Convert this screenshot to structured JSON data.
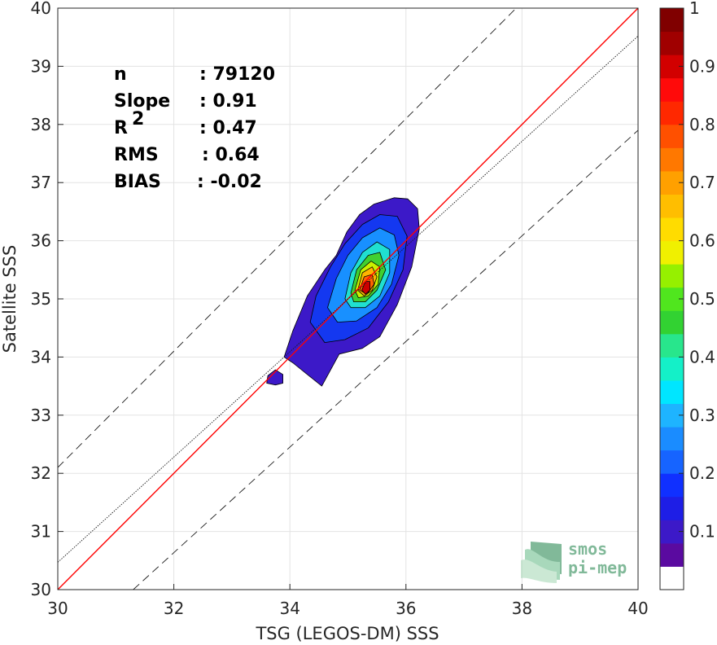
{
  "chart_data": {
    "type": "contour-density",
    "xlabel": "TSG (LEGOS-DM) SSS",
    "ylabel": "Satellite SSS",
    "xlim": [
      30,
      40
    ],
    "ylim": [
      30,
      40
    ],
    "xticks": [
      "30",
      "32",
      "34",
      "36",
      "38",
      "40"
    ],
    "yticks": [
      "30",
      "31",
      "32",
      "33",
      "34",
      "35",
      "36",
      "37",
      "38",
      "39",
      "40"
    ],
    "grid": true,
    "stats": [
      {
        "label": "n",
        "value": ": 79120"
      },
      {
        "label": "Slope",
        "value": ": 0.91"
      },
      {
        "label": "R",
        "sup": "2",
        "value": ": 0.47"
      },
      {
        "label": "RMS",
        "value": ": 0.64"
      },
      {
        "label": "BIAS",
        "value": ": -0.02"
      }
    ],
    "lines": [
      {
        "kind": "identity",
        "color": "#ff0000",
        "x": [
          30,
          40
        ],
        "y": [
          30,
          40
        ]
      },
      {
        "kind": "fit",
        "color": "#1a1a1a",
        "x": [
          30,
          40
        ],
        "y": [
          30.47,
          39.52
        ]
      },
      {
        "kind": "upper-bound",
        "color": "#1a1a1a",
        "x": [
          30,
          40
        ],
        "y": [
          32.1,
          42.1
        ]
      },
      {
        "kind": "lower-bound",
        "color": "#1a1a1a",
        "x": [
          31.3,
          40
        ],
        "y": [
          30,
          37.9
        ]
      }
    ],
    "density_peak": {
      "x": 35.3,
      "y": 35.2
    },
    "contours": [
      {
        "level": 0.1,
        "color": "#3c19c8",
        "points": [
          [
            33.9,
            34.0
          ],
          [
            34.05,
            34.45
          ],
          [
            34.3,
            35.05
          ],
          [
            34.6,
            35.5
          ],
          [
            34.8,
            35.75
          ],
          [
            34.98,
            36.15
          ],
          [
            35.2,
            36.45
          ],
          [
            35.45,
            36.63
          ],
          [
            35.8,
            36.74
          ],
          [
            36.03,
            36.72
          ],
          [
            36.2,
            36.55
          ],
          [
            36.23,
            36.2
          ],
          [
            36.1,
            35.55
          ],
          [
            35.85,
            34.9
          ],
          [
            35.55,
            34.35
          ],
          [
            35.25,
            34.15
          ],
          [
            34.85,
            34.05
          ],
          [
            34.55,
            33.5
          ],
          [
            34.3,
            33.7
          ],
          [
            34.05,
            33.9
          ],
          [
            33.9,
            34.0
          ]
        ]
      },
      {
        "level": 0.2,
        "color": "#1438f0",
        "points": [
          [
            34.35,
            34.6
          ],
          [
            34.45,
            35.05
          ],
          [
            34.7,
            35.55
          ],
          [
            34.95,
            35.95
          ],
          [
            35.25,
            36.28
          ],
          [
            35.55,
            36.45
          ],
          [
            35.85,
            36.42
          ],
          [
            36.02,
            36.08
          ],
          [
            35.95,
            35.5
          ],
          [
            35.7,
            34.95
          ],
          [
            35.35,
            34.5
          ],
          [
            34.95,
            34.3
          ],
          [
            34.6,
            34.25
          ],
          [
            34.35,
            34.6
          ]
        ]
      },
      {
        "level": 0.3,
        "color": "#1890ff",
        "points": [
          [
            34.65,
            34.85
          ],
          [
            34.8,
            35.35
          ],
          [
            35.0,
            35.75
          ],
          [
            35.25,
            36.05
          ],
          [
            35.55,
            36.22
          ],
          [
            35.8,
            36.1
          ],
          [
            35.88,
            35.75
          ],
          [
            35.75,
            35.25
          ],
          [
            35.5,
            34.85
          ],
          [
            35.15,
            34.62
          ],
          [
            34.82,
            34.6
          ],
          [
            34.65,
            34.85
          ]
        ]
      },
      {
        "level": 0.4,
        "color": "#20e0d0",
        "points": [
          [
            34.95,
            35.0
          ],
          [
            35.05,
            35.45
          ],
          [
            35.25,
            35.8
          ],
          [
            35.5,
            35.98
          ],
          [
            35.72,
            35.85
          ],
          [
            35.72,
            35.45
          ],
          [
            35.55,
            35.05
          ],
          [
            35.3,
            34.85
          ],
          [
            35.05,
            34.85
          ],
          [
            34.95,
            35.0
          ]
        ]
      },
      {
        "level": 0.5,
        "color": "#40d030",
        "points": [
          [
            35.05,
            35.1
          ],
          [
            35.15,
            35.5
          ],
          [
            35.35,
            35.75
          ],
          [
            35.55,
            35.8
          ],
          [
            35.65,
            35.5
          ],
          [
            35.5,
            35.15
          ],
          [
            35.3,
            34.95
          ],
          [
            35.1,
            34.95
          ],
          [
            35.05,
            35.1
          ]
        ]
      },
      {
        "level": 0.6,
        "color": "#c8f000",
        "points": [
          [
            35.12,
            35.15
          ],
          [
            35.22,
            35.5
          ],
          [
            35.4,
            35.65
          ],
          [
            35.55,
            35.55
          ],
          [
            35.52,
            35.25
          ],
          [
            35.35,
            35.05
          ],
          [
            35.18,
            35.02
          ],
          [
            35.12,
            35.15
          ]
        ]
      },
      {
        "level": 0.7,
        "color": "#ffb400",
        "points": [
          [
            35.17,
            35.15
          ],
          [
            35.25,
            35.45
          ],
          [
            35.42,
            35.55
          ],
          [
            35.5,
            35.38
          ],
          [
            35.42,
            35.15
          ],
          [
            35.28,
            35.05
          ],
          [
            35.17,
            35.15
          ]
        ]
      },
      {
        "level": 0.8,
        "color": "#ff6400",
        "points": [
          [
            35.2,
            35.15
          ],
          [
            35.28,
            35.38
          ],
          [
            35.42,
            35.42
          ],
          [
            35.45,
            35.25
          ],
          [
            35.33,
            35.08
          ],
          [
            35.2,
            35.15
          ]
        ]
      },
      {
        "level": 0.9,
        "color": "#cc0000",
        "points": [
          [
            35.24,
            35.15
          ],
          [
            35.3,
            35.3
          ],
          [
            35.38,
            35.3
          ],
          [
            35.38,
            35.15
          ],
          [
            35.3,
            35.08
          ],
          [
            35.24,
            35.15
          ]
        ]
      },
      {
        "level": 0.1,
        "color": "#3c19c8",
        "points": [
          [
            33.6,
            33.55
          ],
          [
            33.62,
            33.68
          ],
          [
            33.75,
            33.78
          ],
          [
            33.88,
            33.7
          ],
          [
            33.88,
            33.55
          ],
          [
            33.75,
            33.52
          ],
          [
            33.6,
            33.55
          ]
        ]
      }
    ],
    "colorbar": {
      "colors": [
        "#ffffff",
        "#5a0aa0",
        "#3c19c8",
        "#1e1ee6",
        "#1030ff",
        "#1664ff",
        "#1a8cff",
        "#1eb4ff",
        "#00e6ff",
        "#14f0c8",
        "#28e68c",
        "#32d232",
        "#50e61e",
        "#96f000",
        "#f0f000",
        "#ffdc00",
        "#ffbe00",
        "#ffa000",
        "#ff7800",
        "#ff5000",
        "#ff2800",
        "#ff0a0a",
        "#d20000",
        "#a00000",
        "#800000"
      ],
      "ticks": [
        "0.1",
        "0.2",
        "0.3",
        "0.4",
        "0.5",
        "0.6",
        "0.7",
        "0.8",
        "0.9",
        "1"
      ]
    }
  },
  "logo": {
    "line1": "smos",
    "line2": "pi-mep"
  }
}
